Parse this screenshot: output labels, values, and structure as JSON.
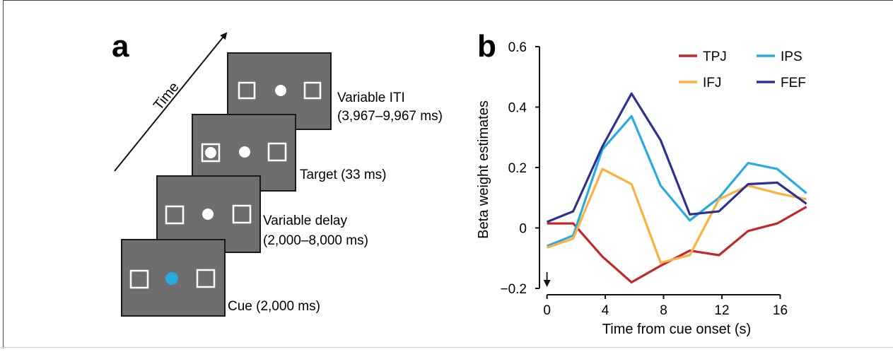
{
  "panel_a": {
    "label": "a",
    "time_label": "Time",
    "screens": [
      {
        "id": "iti",
        "caption_lines": [
          "Variable ITI",
          "(3,967–9,967 ms)"
        ],
        "center_dot": "white",
        "left_filled": false
      },
      {
        "id": "target",
        "caption_lines": [
          "Target (33 ms)"
        ],
        "center_dot": "white",
        "left_filled": true
      },
      {
        "id": "delay",
        "caption_lines": [
          "Variable delay",
          "(2,000–8,000 ms)"
        ],
        "center_dot": "white",
        "left_filled": false
      },
      {
        "id": "cue",
        "caption_lines": [
          "Cue (2,000 ms)"
        ],
        "center_dot": "blue",
        "left_filled": false
      }
    ],
    "colors": {
      "screen": "#6e6e6e",
      "screen_border": "#1a1a1a",
      "white": "#ffffff",
      "cue_dot": "#29abe2"
    }
  },
  "panel_b": {
    "label": "b"
  },
  "chart_data": {
    "type": "line",
    "title": "",
    "xlabel": "Time from cue onset (s)",
    "ylabel": "Beta weight estimates",
    "xlim": [
      -1,
      18.5
    ],
    "ylim": [
      -0.2,
      0.6
    ],
    "xticks": [
      0,
      4,
      8,
      12,
      16
    ],
    "xtick_labels": [
      "0",
      "4",
      "8",
      "12",
      "16"
    ],
    "yticks": [
      -0.2,
      0,
      0.2,
      0.4,
      0.6
    ],
    "ytick_labels": [
      "−0.2",
      "0",
      "0.2",
      "0.4",
      "0.6"
    ],
    "grid": false,
    "legend_position": "top-right",
    "annotation_arrow_x": 0,
    "x": [
      0,
      1.8,
      3.8,
      5.8,
      7.8,
      9.8,
      11.8,
      13.8,
      15.8,
      17.8
    ],
    "series": [
      {
        "name": "TPJ",
        "color": "#c1272d",
        "values": [
          0.015,
          0.015,
          -0.095,
          -0.18,
          -0.125,
          -0.075,
          -0.09,
          -0.01,
          0.015,
          0.07
        ]
      },
      {
        "name": "IPS",
        "color": "#29abe2",
        "values": [
          -0.06,
          -0.025,
          0.26,
          0.37,
          0.14,
          0.025,
          0.1,
          0.215,
          0.195,
          0.115
        ]
      },
      {
        "name": "IFJ",
        "color": "#fbb040",
        "values": [
          -0.065,
          -0.035,
          0.195,
          0.145,
          -0.115,
          -0.09,
          0.095,
          0.14,
          0.115,
          0.095
        ]
      },
      {
        "name": "FEF",
        "color": "#2e3192",
        "values": [
          0.02,
          0.055,
          0.27,
          0.445,
          0.29,
          0.045,
          0.055,
          0.145,
          0.15,
          0.08
        ]
      }
    ]
  }
}
